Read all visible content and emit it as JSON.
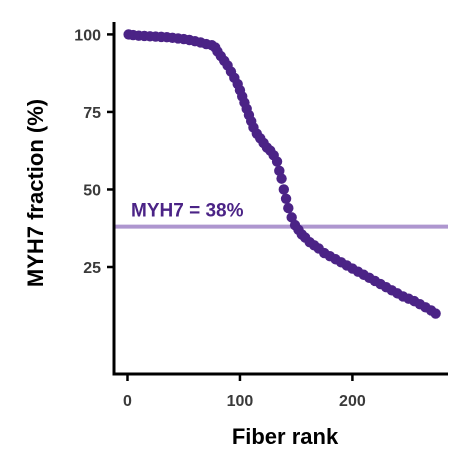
{
  "chart_data": {
    "type": "scatter",
    "title": "",
    "xlabel": "Fiber rank",
    "ylabel": "MYH7 fraction (%)",
    "xlim": [
      -12,
      285
    ],
    "ylim": [
      -9.5,
      104
    ],
    "xticks": [
      0,
      100,
      200
    ],
    "xtick_labels": [
      "0",
      "100",
      "200"
    ],
    "yticks": [
      25,
      50,
      75,
      100
    ],
    "ytick_labels": [
      "25",
      "50",
      "75",
      "100"
    ],
    "grid": false,
    "legend": "none",
    "colors": {
      "points": "#4b2386",
      "reference_line": "#ae96cf",
      "reference_label": "#4b2386"
    },
    "reference_line": {
      "y": 38,
      "label": "MYH7 = 38%"
    },
    "series": [
      {
        "points": [
          [
            1,
            100
          ],
          [
            5,
            99.8
          ],
          [
            10,
            99.6
          ],
          [
            15,
            99.5
          ],
          [
            20,
            99.4
          ],
          [
            25,
            99.3
          ],
          [
            30,
            99.2
          ],
          [
            35,
            99.1
          ],
          [
            40,
            98.9
          ],
          [
            45,
            98.7
          ],
          [
            50,
            98.5
          ],
          [
            55,
            98.2
          ],
          [
            60,
            97.8
          ],
          [
            65,
            97.4
          ],
          [
            70,
            96.9
          ],
          [
            75,
            96.5
          ],
          [
            78,
            95.8
          ],
          [
            80,
            94.5
          ],
          [
            83,
            93
          ],
          [
            86,
            91.5
          ],
          [
            89,
            90
          ],
          [
            92,
            88
          ],
          [
            95,
            86
          ],
          [
            98,
            84
          ],
          [
            100,
            82
          ],
          [
            102,
            80
          ],
          [
            104,
            78
          ],
          [
            106,
            76
          ],
          [
            108,
            74
          ],
          [
            110,
            72
          ],
          [
            112,
            70
          ],
          [
            115,
            68
          ],
          [
            118,
            66.5
          ],
          [
            121,
            65
          ],
          [
            124,
            63.5
          ],
          [
            127,
            62.5
          ],
          [
            130,
            61
          ],
          [
            133,
            59
          ],
          [
            135,
            56
          ],
          [
            137,
            53.5
          ],
          [
            139,
            50
          ],
          [
            141,
            47
          ],
          [
            143,
            44
          ],
          [
            146,
            41
          ],
          [
            149,
            38.5
          ],
          [
            152,
            37
          ],
          [
            155,
            35.5
          ],
          [
            158,
            34.5
          ],
          [
            162,
            33
          ],
          [
            166,
            32
          ],
          [
            170,
            31
          ],
          [
            175,
            29.5
          ],
          [
            180,
            28.5
          ],
          [
            185,
            27.5
          ],
          [
            190,
            26.5
          ],
          [
            195,
            25.5
          ],
          [
            200,
            24.5
          ],
          [
            205,
            23.5
          ],
          [
            210,
            22.5
          ],
          [
            215,
            21.5
          ],
          [
            220,
            20.5
          ],
          [
            225,
            19.5
          ],
          [
            230,
            18.5
          ],
          [
            235,
            17.5
          ],
          [
            240,
            16.5
          ],
          [
            245,
            15.5
          ],
          [
            250,
            14.8
          ],
          [
            255,
            14
          ],
          [
            260,
            13
          ],
          [
            265,
            12
          ],
          [
            270,
            11
          ],
          [
            274,
            10
          ]
        ]
      }
    ]
  }
}
